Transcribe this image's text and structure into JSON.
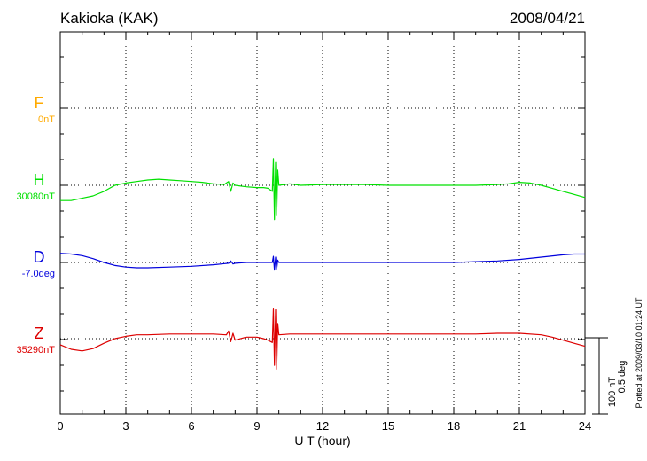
{
  "header": {
    "station": "Kakioka (KAK)",
    "date": "2008/04/21"
  },
  "footer_note": "Plotted at 2009/03/10 01:24 UT",
  "scale_bar": {
    "label_nt": "100 nT",
    "label_deg": "0.5 deg"
  },
  "chart_data": {
    "type": "line",
    "xlabel": "U T (hour)",
    "xlim": [
      0,
      24
    ],
    "xticks": [
      "0",
      "3",
      "6",
      "9",
      "12",
      "15",
      "18",
      "21",
      "24"
    ],
    "grid": true,
    "series": [
      {
        "name": "F",
        "baseline_label": "0nT",
        "color": "#ffaa00",
        "points": []
      },
      {
        "name": "H",
        "baseline_label": "30080nT",
        "color": "#00e000",
        "points": [
          [
            0,
            -20
          ],
          [
            0.5,
            -20
          ],
          [
            1,
            -17
          ],
          [
            1.5,
            -14
          ],
          [
            2,
            -8
          ],
          [
            2.5,
            0
          ],
          [
            3,
            3
          ],
          [
            3.5,
            5
          ],
          [
            4,
            7
          ],
          [
            4.5,
            8
          ],
          [
            5,
            7
          ],
          [
            5.5,
            6
          ],
          [
            6,
            5
          ],
          [
            6.5,
            4
          ],
          [
            7,
            2
          ],
          [
            7.5,
            1
          ],
          [
            7.7,
            5
          ],
          [
            7.8,
            -8
          ],
          [
            7.9,
            3
          ],
          [
            8,
            0
          ],
          [
            8.5,
            -2
          ],
          [
            9,
            -3
          ],
          [
            9.3,
            -3
          ],
          [
            9.5,
            -4
          ],
          [
            9.7,
            -8
          ],
          [
            9.75,
            35
          ],
          [
            9.8,
            -45
          ],
          [
            9.85,
            30
          ],
          [
            9.9,
            -40
          ],
          [
            9.95,
            20
          ],
          [
            10,
            0
          ],
          [
            10.5,
            2
          ],
          [
            11,
            0
          ],
          [
            12,
            1
          ],
          [
            13,
            1
          ],
          [
            14,
            1
          ],
          [
            15,
            0
          ],
          [
            16,
            0
          ],
          [
            17,
            0
          ],
          [
            18,
            0
          ],
          [
            19,
            0
          ],
          [
            20,
            1
          ],
          [
            20.5,
            2
          ],
          [
            21,
            4
          ],
          [
            21.5,
            3
          ],
          [
            22,
            0
          ],
          [
            22.5,
            -4
          ],
          [
            23,
            -8
          ],
          [
            23.5,
            -12
          ],
          [
            24,
            -16
          ]
        ]
      },
      {
        "name": "D",
        "baseline_label": "-7.0deg",
        "color": "#0000dd",
        "points": [
          [
            0,
            12
          ],
          [
            0.5,
            11
          ],
          [
            1,
            9
          ],
          [
            1.5,
            5
          ],
          [
            2,
            0
          ],
          [
            2.5,
            -4
          ],
          [
            3,
            -6
          ],
          [
            3.5,
            -7
          ],
          [
            4,
            -7
          ],
          [
            5,
            -6
          ],
          [
            6,
            -5
          ],
          [
            7,
            -3
          ],
          [
            7.7,
            -1
          ],
          [
            7.8,
            2
          ],
          [
            7.9,
            -2
          ],
          [
            8,
            -1
          ],
          [
            8.5,
            0
          ],
          [
            9,
            0
          ],
          [
            9.5,
            0
          ],
          [
            9.7,
            0
          ],
          [
            9.75,
            8
          ],
          [
            9.8,
            -10
          ],
          [
            9.85,
            7
          ],
          [
            9.9,
            -9
          ],
          [
            9.95,
            3
          ],
          [
            10,
            0
          ],
          [
            11,
            0
          ],
          [
            12,
            0
          ],
          [
            13,
            0
          ],
          [
            14,
            0
          ],
          [
            15,
            0
          ],
          [
            16,
            0
          ],
          [
            17,
            0
          ],
          [
            18,
            0
          ],
          [
            19,
            1
          ],
          [
            20,
            2
          ],
          [
            21,
            4
          ],
          [
            22,
            7
          ],
          [
            23,
            10
          ],
          [
            23.5,
            11
          ],
          [
            24,
            11
          ]
        ]
      },
      {
        "name": "Z",
        "baseline_label": "35290nT",
        "color": "#dd0000",
        "points": [
          [
            0,
            -8
          ],
          [
            0.5,
            -14
          ],
          [
            1,
            -16
          ],
          [
            1.5,
            -13
          ],
          [
            2,
            -6
          ],
          [
            2.5,
            0
          ],
          [
            3,
            3
          ],
          [
            3.5,
            5
          ],
          [
            4,
            5
          ],
          [
            5,
            6
          ],
          [
            6,
            6
          ],
          [
            7,
            6
          ],
          [
            7.6,
            5
          ],
          [
            7.7,
            10
          ],
          [
            7.8,
            -4
          ],
          [
            7.9,
            7
          ],
          [
            8,
            -2
          ],
          [
            8.5,
            2
          ],
          [
            9,
            2
          ],
          [
            9.3,
            0
          ],
          [
            9.5,
            -2
          ],
          [
            9.7,
            -5
          ],
          [
            9.75,
            40
          ],
          [
            9.8,
            -35
          ],
          [
            9.85,
            38
          ],
          [
            9.9,
            -40
          ],
          [
            9.95,
            20
          ],
          [
            10,
            5
          ],
          [
            10.5,
            6
          ],
          [
            11,
            6
          ],
          [
            12,
            6
          ],
          [
            13,
            6
          ],
          [
            14,
            6
          ],
          [
            15,
            6
          ],
          [
            16,
            6
          ],
          [
            17,
            6
          ],
          [
            18,
            6
          ],
          [
            19,
            6
          ],
          [
            20,
            7
          ],
          [
            21,
            7
          ],
          [
            22,
            5
          ],
          [
            22.5,
            2
          ],
          [
            23,
            -2
          ],
          [
            23.5,
            -6
          ],
          [
            24,
            -10
          ]
        ]
      }
    ]
  }
}
